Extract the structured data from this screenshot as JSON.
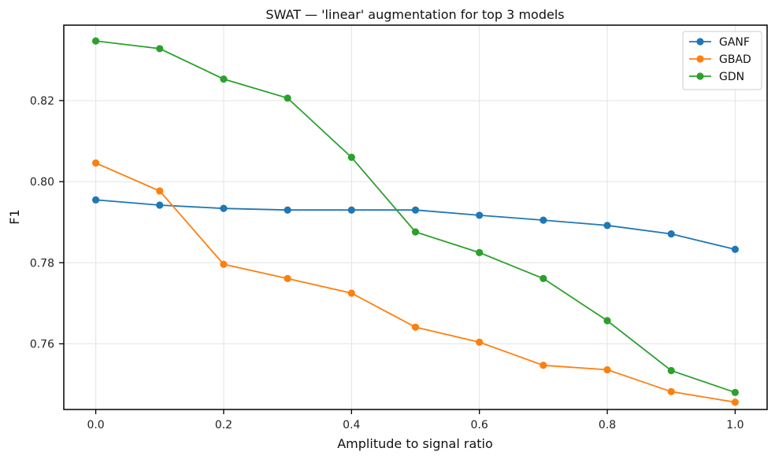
{
  "chart_data": {
    "type": "line",
    "title": "SWAT — 'linear' augmentation for top 3 models",
    "xlabel": "Amplitude to signal ratio",
    "ylabel": "F1",
    "xlim": [
      -0.05,
      1.05
    ],
    "ylim": [
      0.7438,
      0.8386
    ],
    "x": [
      0.0,
      0.1,
      0.2,
      0.3,
      0.4,
      0.5,
      0.6,
      0.7,
      0.8,
      0.9,
      1.0
    ],
    "xticks": [
      "0.0",
      "0.2",
      "0.4",
      "0.6",
      "0.8",
      "1.0"
    ],
    "xtick_values": [
      0.0,
      0.2,
      0.4,
      0.6,
      0.8,
      1.0
    ],
    "yticks": [
      "0.76",
      "0.78",
      "0.80",
      "0.82"
    ],
    "ytick_values": [
      0.76,
      0.78,
      0.8,
      0.82
    ],
    "grid": true,
    "legend_position": "top-right",
    "series": [
      {
        "name": "GANF",
        "color": "#1f77b4",
        "values": [
          0.7955,
          0.7942,
          0.7934,
          0.793,
          0.793,
          0.793,
          0.7917,
          0.7905,
          0.7892,
          0.7871,
          0.7833
        ]
      },
      {
        "name": "GBAD",
        "color": "#ff7f0e",
        "values": [
          0.8046,
          0.7977,
          0.7796,
          0.7761,
          0.7725,
          0.7641,
          0.7604,
          0.7547,
          0.7536,
          0.7482,
          0.7456
        ]
      },
      {
        "name": "GDN",
        "color": "#2ca02c",
        "values": [
          0.8347,
          0.8328,
          0.8253,
          0.8206,
          0.806,
          0.7876,
          0.7825,
          0.7761,
          0.7657,
          0.7534,
          0.748
        ]
      }
    ]
  }
}
